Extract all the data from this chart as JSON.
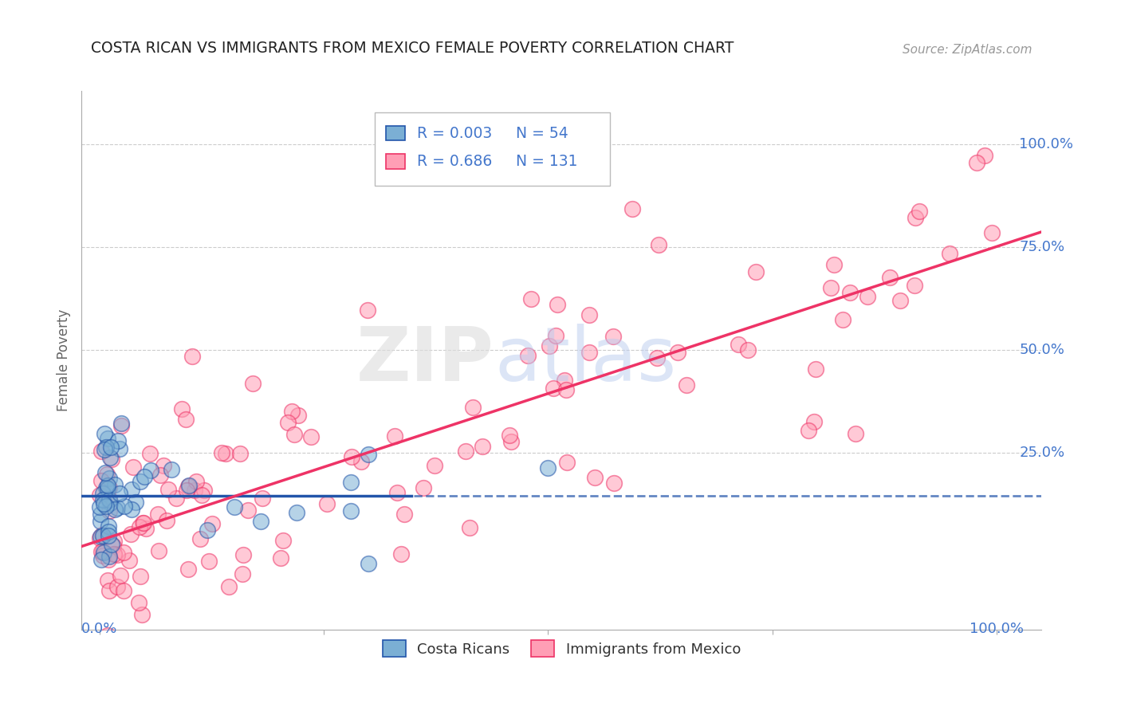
{
  "title": "COSTA RICAN VS IMMIGRANTS FROM MEXICO FEMALE POVERTY CORRELATION CHART",
  "source": "Source: ZipAtlas.com",
  "ylabel": "Female Poverty",
  "color_blue": "#7BAFD4",
  "color_pink": "#FF9EB5",
  "color_line_blue": "#2255AA",
  "color_line_pink": "#EE3366",
  "color_label_blue": "#4477CC",
  "color_title": "#222222",
  "background": "#FFFFFF"
}
